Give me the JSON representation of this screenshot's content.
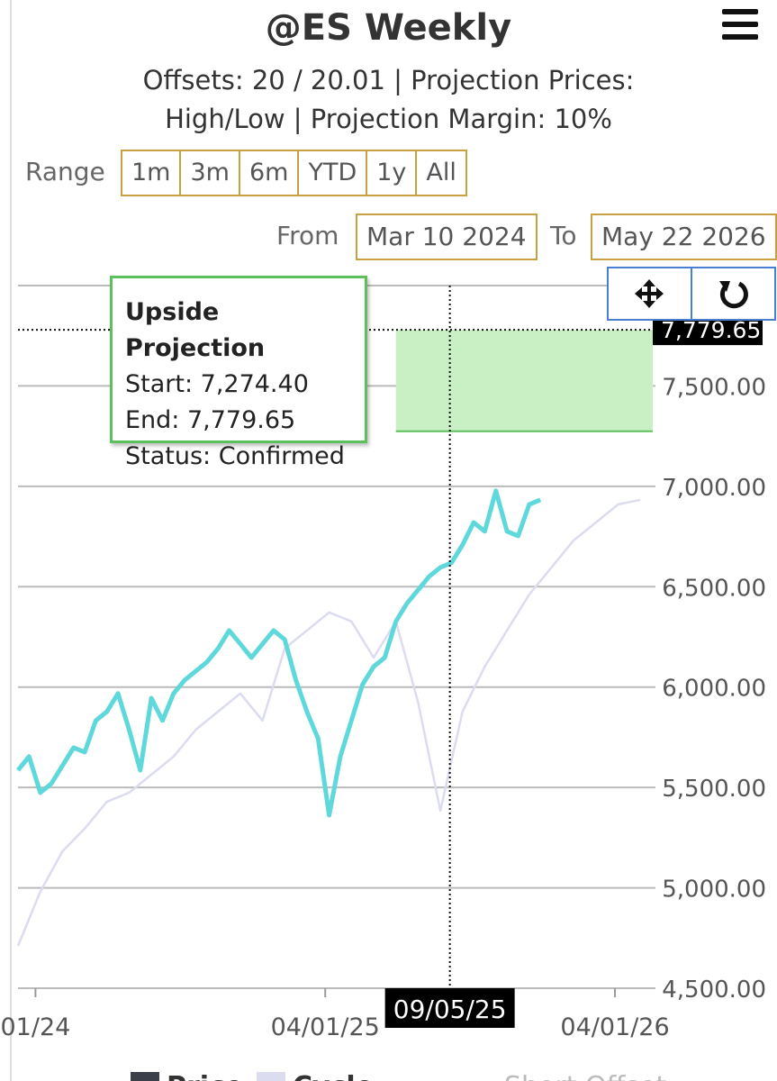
{
  "header": {
    "title": "@ES Weekly",
    "subtitle": "Offsets: 20 / 20.01 | Projection Prices: High/Low | Projection Margin: 10%"
  },
  "range": {
    "label": "Range",
    "buttons": [
      "1m",
      "3m",
      "6m",
      "YTD",
      "1y",
      "All"
    ]
  },
  "dates": {
    "from_label": "From",
    "from": "Mar 10 2024",
    "to_label": "To",
    "to": "May 22 2026"
  },
  "chart_data": {
    "type": "line",
    "xlim": [
      "2024-03-10",
      "2026-05-22"
    ],
    "xticks": [
      {
        "value": "2024-04-01",
        "label": "01/24"
      },
      {
        "value": "2025-04-01",
        "label": "04/01/25"
      },
      {
        "value": "2026-04-01",
        "label": "04/01/26"
      }
    ],
    "ylim": [
      4500,
      8000
    ],
    "yticks": [
      {
        "value": 4500,
        "label": "4,500.00"
      },
      {
        "value": 5000,
        "label": "5,000.00"
      },
      {
        "value": 5500,
        "label": "5,500.00"
      },
      {
        "value": 6000,
        "label": "6,000.00"
      },
      {
        "value": 6500,
        "label": "6,500.00"
      },
      {
        "value": 7000,
        "label": "7,000.00"
      },
      {
        "value": 7500,
        "label": "7,500.00"
      }
    ],
    "grid": true,
    "series": [
      {
        "name": "Price",
        "color": "#5fd8dc",
        "legend_color": "#3a3f4a",
        "x": [
          "2024-03-10",
          "2024-03-24",
          "2024-04-07",
          "2024-04-21",
          "2024-05-05",
          "2024-05-19",
          "2024-06-02",
          "2024-06-16",
          "2024-06-30",
          "2024-07-14",
          "2024-07-28",
          "2024-08-11",
          "2024-08-25",
          "2024-09-08",
          "2024-09-22",
          "2024-10-06",
          "2024-10-20",
          "2024-11-03",
          "2024-11-17",
          "2024-12-01",
          "2024-12-15",
          "2024-12-29",
          "2025-01-12",
          "2025-01-26",
          "2025-02-09",
          "2025-02-23",
          "2025-03-09",
          "2025-03-23",
          "2025-04-06",
          "2025-04-20",
          "2025-05-04",
          "2025-05-18",
          "2025-06-01",
          "2025-06-15",
          "2025-06-29",
          "2025-07-13",
          "2025-07-27",
          "2025-08-10",
          "2025-08-24",
          "2025-09-07",
          "2025-09-21",
          "2025-10-05",
          "2025-10-19",
          "2025-11-02",
          "2025-11-16",
          "2025-11-30",
          "2025-12-14",
          "2025-12-28"
        ],
        "values": [
          5586,
          5654,
          5474,
          5519,
          5609,
          5698,
          5676,
          5833,
          5878,
          5968,
          5788,
          5586,
          5945,
          5833,
          5968,
          6035,
          6080,
          6125,
          6192,
          6282,
          6215,
          6147,
          6215,
          6282,
          6237,
          6035,
          5878,
          5743,
          5362,
          5654,
          5833,
          6013,
          6102,
          6147,
          6327,
          6417,
          6484,
          6551,
          6596,
          6619,
          6708,
          6820,
          6776,
          6978,
          6776,
          6753,
          6910,
          6933
        ]
      },
      {
        "name": "Cycle",
        "color": "#dcdcf0",
        "x": [
          "2024-03-10",
          "2024-04-07",
          "2024-05-05",
          "2024-06-02",
          "2024-06-30",
          "2024-07-28",
          "2024-08-25",
          "2024-09-22",
          "2024-10-20",
          "2024-11-17",
          "2024-12-15",
          "2025-01-12",
          "2025-02-09",
          "2025-03-09",
          "2025-04-06",
          "2025-05-04",
          "2025-06-01",
          "2025-06-29",
          "2025-07-27",
          "2025-08-24",
          "2025-09-21",
          "2025-10-19",
          "2025-11-16",
          "2025-12-14",
          "2026-01-11",
          "2026-02-08",
          "2026-03-08",
          "2026-04-05",
          "2026-05-03"
        ],
        "values": [
          4711,
          4980,
          5182,
          5295,
          5429,
          5474,
          5564,
          5654,
          5788,
          5878,
          5968,
          5833,
          6192,
          6282,
          6372,
          6327,
          6147,
          6327,
          5923,
          5384,
          5878,
          6102,
          6282,
          6461,
          6596,
          6731,
          6820,
          6910,
          6933
        ]
      },
      {
        "name": "Short Offset",
        "color": "#c8c8c8",
        "x": [],
        "values": []
      }
    ],
    "projection": {
      "x_start": "2025-06-29",
      "start": 7274.4,
      "end": 7779.65,
      "color": "#c9efc4",
      "line_color": "#5cc05c"
    },
    "tooltip": {
      "title": "Upside Projection",
      "lines": [
        "Start: 7,274.40",
        "End: 7,779.65",
        "Status: Confirmed"
      ]
    },
    "crosshair": {
      "x": "2025-09-05",
      "x_label": "09/05/25",
      "y": 7779.65,
      "y_label": "7,779.65"
    }
  }
}
